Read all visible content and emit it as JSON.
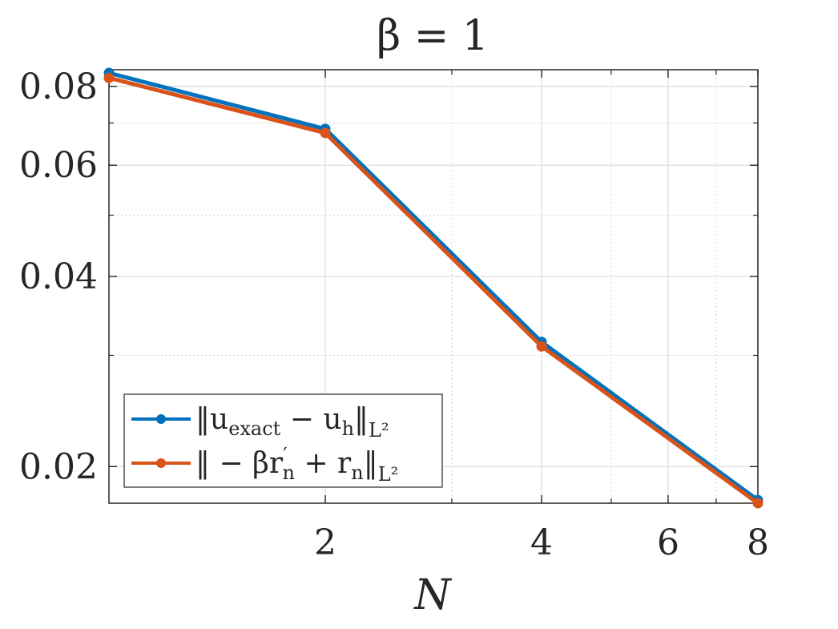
{
  "chart_data": {
    "type": "line",
    "title": "β = 1",
    "xlabel": "N",
    "ylabel": "",
    "x_scale": "log",
    "y_scale": "log",
    "xlim": [
      1,
      8
    ],
    "ylim": [
      0.0175,
      0.085
    ],
    "x_ticks": [
      2,
      4,
      6,
      8
    ],
    "x_tick_labels": [
      "2",
      "4",
      "6",
      "8"
    ],
    "y_ticks": [
      0.02,
      0.04,
      0.06,
      0.08
    ],
    "y_tick_labels": [
      "0.02",
      "0.04",
      "0.06",
      "0.08"
    ],
    "grid": true,
    "legend_position": "bottom-left",
    "x": [
      1,
      2,
      4,
      8
    ],
    "series": [
      {
        "name_parts": [
          "‖u",
          "exact",
          " − u",
          "h",
          "‖",
          "L²"
        ],
        "color": "#0072BD",
        "values": [
          0.084,
          0.0685,
          0.0315,
          0.0177
        ]
      },
      {
        "name_parts": [
          "‖ − βr",
          "′",
          "n",
          " + r",
          "n",
          "‖",
          "L²"
        ],
        "color": "#D95319",
        "values": [
          0.0825,
          0.0675,
          0.031,
          0.0175
        ]
      }
    ]
  }
}
